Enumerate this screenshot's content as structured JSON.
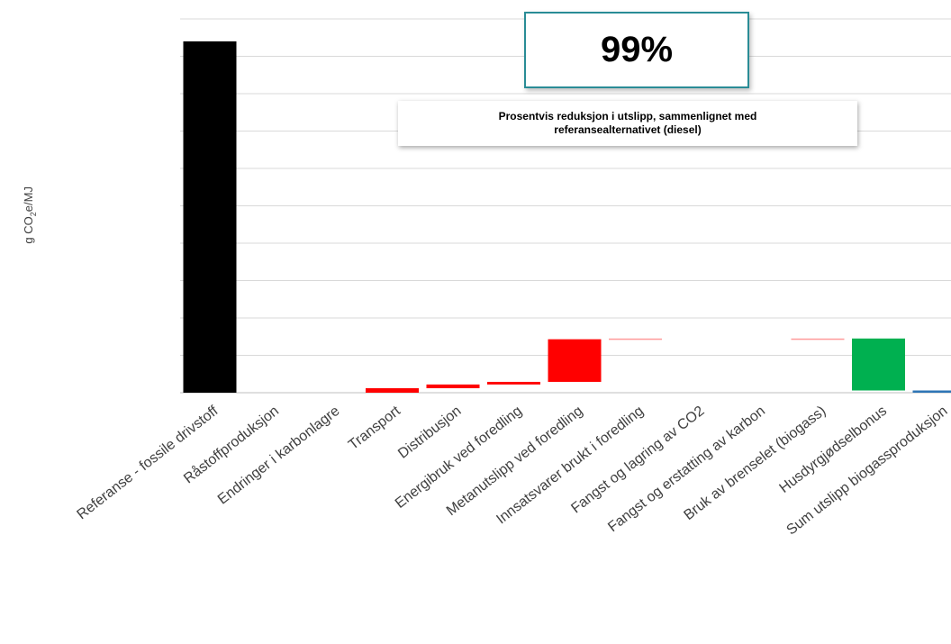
{
  "chart_data": {
    "type": "bar",
    "subtype": "waterfall",
    "ylabel_prefix": "g CO",
    "ylabel_sub": "2",
    "ylabel_suffix": "e/MJ",
    "ylim": [
      0,
      100
    ],
    "grid": true,
    "categories": [
      "Referanse - fossile drivstoff",
      "Råstoffproduksjon",
      "Endringer i karbonlagre",
      "Transport",
      "Distribusjon",
      "Energibruk ved foredling",
      "Metanutslipp ved foredling",
      "Innsatsvarer brukt i foredling",
      "Fangst og lagring av CO2",
      "Fangst og erstatting av karbon",
      "Bruk av brenselet (biogass)",
      "Husdyrgjødselbonus",
      "Sum utslipp biogassproduksjon"
    ],
    "bars": [
      {
        "base": 0,
        "top": 94.0,
        "color": "#000000"
      },
      {
        "base": 0,
        "top": 0,
        "color": "#ff0000"
      },
      {
        "base": 0,
        "top": 0,
        "color": "#ff0000"
      },
      {
        "base": 0,
        "top": 1.2,
        "color": "#ff0000"
      },
      {
        "base": 1.2,
        "top": 2.2,
        "color": "#ff0000"
      },
      {
        "base": 2.2,
        "top": 2.9,
        "color": "#ff0000"
      },
      {
        "base": 2.9,
        "top": 14.3,
        "color": "#ff0000"
      },
      {
        "base": 14.3,
        "top": 14.5,
        "color": "#ff9999"
      },
      {
        "base": 14.5,
        "top": 14.5,
        "color": "#ff0000"
      },
      {
        "base": 14.5,
        "top": 14.5,
        "color": "#ff0000"
      },
      {
        "base": 14.3,
        "top": 14.5,
        "color": "#ff9999"
      },
      {
        "base": 0.6,
        "top": 14.5,
        "color": "#00b050"
      },
      {
        "base": 0,
        "top": 0.6,
        "color": "#2e75b6"
      }
    ]
  },
  "annotation": {
    "percent": "99%",
    "description": "Prosentvis reduksjon i utslipp, sammenlignet med referansealternativet (diesel)"
  }
}
